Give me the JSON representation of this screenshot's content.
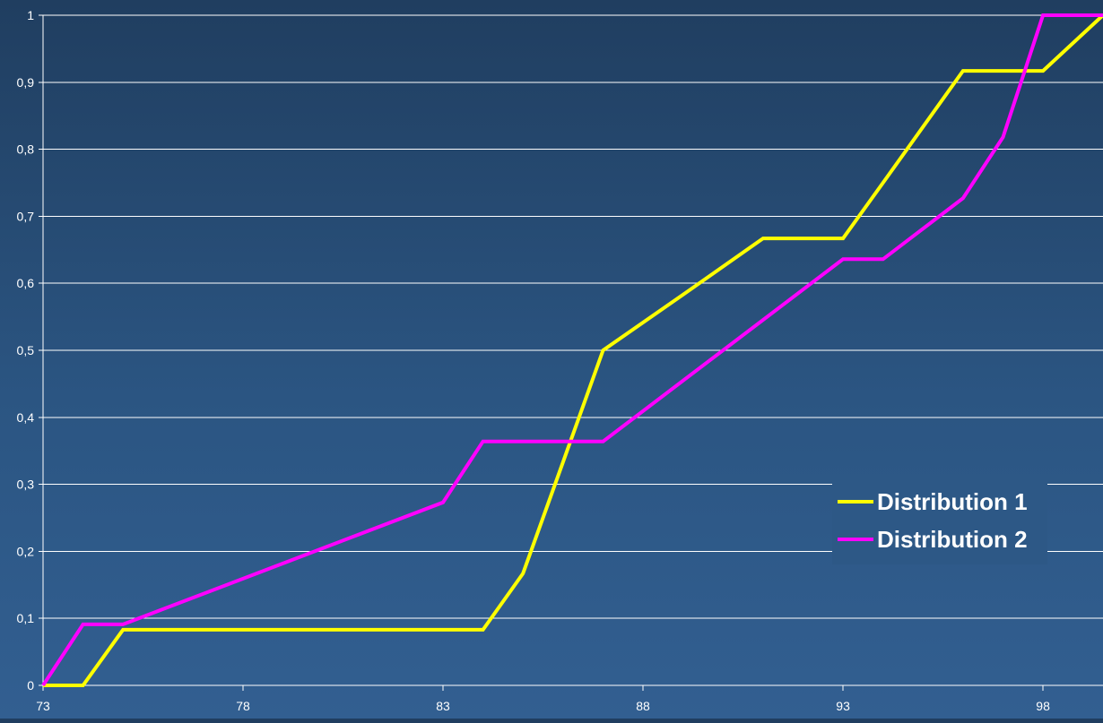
{
  "chart_data": {
    "type": "line",
    "title": "",
    "xlabel": "",
    "ylabel": "",
    "xlim": [
      73,
      99.5
    ],
    "ylim": [
      0,
      1
    ],
    "x_ticks": [
      73,
      78,
      83,
      88,
      93,
      98
    ],
    "y_ticks": [
      0,
      0.1,
      0.2,
      0.3,
      0.4,
      0.5,
      0.6,
      0.7,
      0.8,
      0.9,
      1
    ],
    "y_tick_labels": [
      "0",
      "0,1",
      "0,2",
      "0,3",
      "0,4",
      "0,5",
      "0,6",
      "0,7",
      "0,8",
      "0,9",
      "1"
    ],
    "grid": true,
    "legend_position": "right",
    "background_color": "#2b5582",
    "series": [
      {
        "name": "Distribution 1",
        "color": "#ffff00",
        "points": [
          [
            73,
            0
          ],
          [
            74,
            0
          ],
          [
            75,
            0.083
          ],
          [
            84,
            0.083
          ],
          [
            85,
            0.167
          ],
          [
            86,
            0.333
          ],
          [
            87,
            0.5
          ],
          [
            89,
            0.583
          ],
          [
            91,
            0.667
          ],
          [
            93,
            0.667
          ],
          [
            94,
            0.75
          ],
          [
            96,
            0.917
          ],
          [
            98,
            0.917
          ],
          [
            99.5,
            1
          ]
        ]
      },
      {
        "name": "Distribution 2",
        "color": "#ff00ff",
        "points": [
          [
            73,
            0
          ],
          [
            74,
            0.091
          ],
          [
            75,
            0.091
          ],
          [
            83,
            0.273
          ],
          [
            84,
            0.364
          ],
          [
            87,
            0.364
          ],
          [
            93,
            0.636
          ],
          [
            94,
            0.636
          ],
          [
            96,
            0.727
          ],
          [
            97,
            0.818
          ],
          [
            98,
            1
          ],
          [
            99.5,
            1
          ]
        ]
      }
    ]
  }
}
